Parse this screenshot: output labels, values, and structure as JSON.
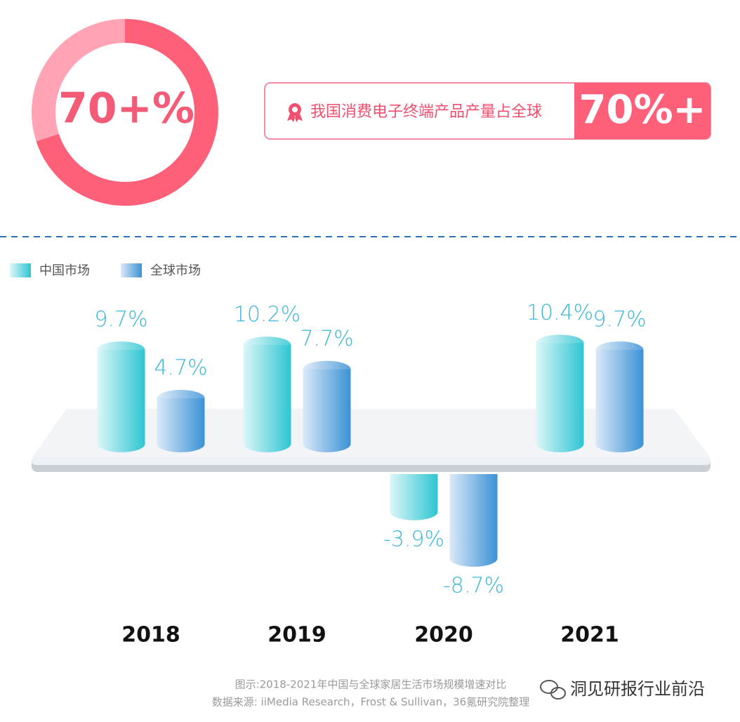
{
  "banner": {
    "text": "我国消费电子终端产品产量占全球",
    "value": "70%+"
  },
  "chart_data": [
    {
      "type": "donut",
      "center_label": "70+%",
      "values": [
        70,
        30
      ],
      "colors": [
        "#fe6079",
        "#ffa3b5"
      ]
    },
    {
      "type": "bar",
      "categories": [
        "2018",
        "2019",
        "2020",
        "2021"
      ],
      "series": [
        {
          "name": "中国市场",
          "color": "#2ec5d3",
          "values": [
            9.7,
            10.2,
            -3.9,
            10.4
          ],
          "value_labels": [
            "9.7%",
            "10.2%",
            "-3.9%",
            "10.4%"
          ]
        },
        {
          "name": "全球市场",
          "color": "#3a92d6",
          "values": [
            4.7,
            7.7,
            -8.7,
            9.7
          ],
          "value_labels": [
            "4.7%",
            "7.7%",
            "-8.7%",
            "9.7%"
          ]
        }
      ]
    }
  ],
  "footer": {
    "caption": "图示:2018-2021年中国与全球家居生活市场规模增速对比",
    "source": "数据来源: iiMedia Research，Frost & Sullivan，36氪研究院整理",
    "watermark": "洞见研报行业前沿"
  }
}
